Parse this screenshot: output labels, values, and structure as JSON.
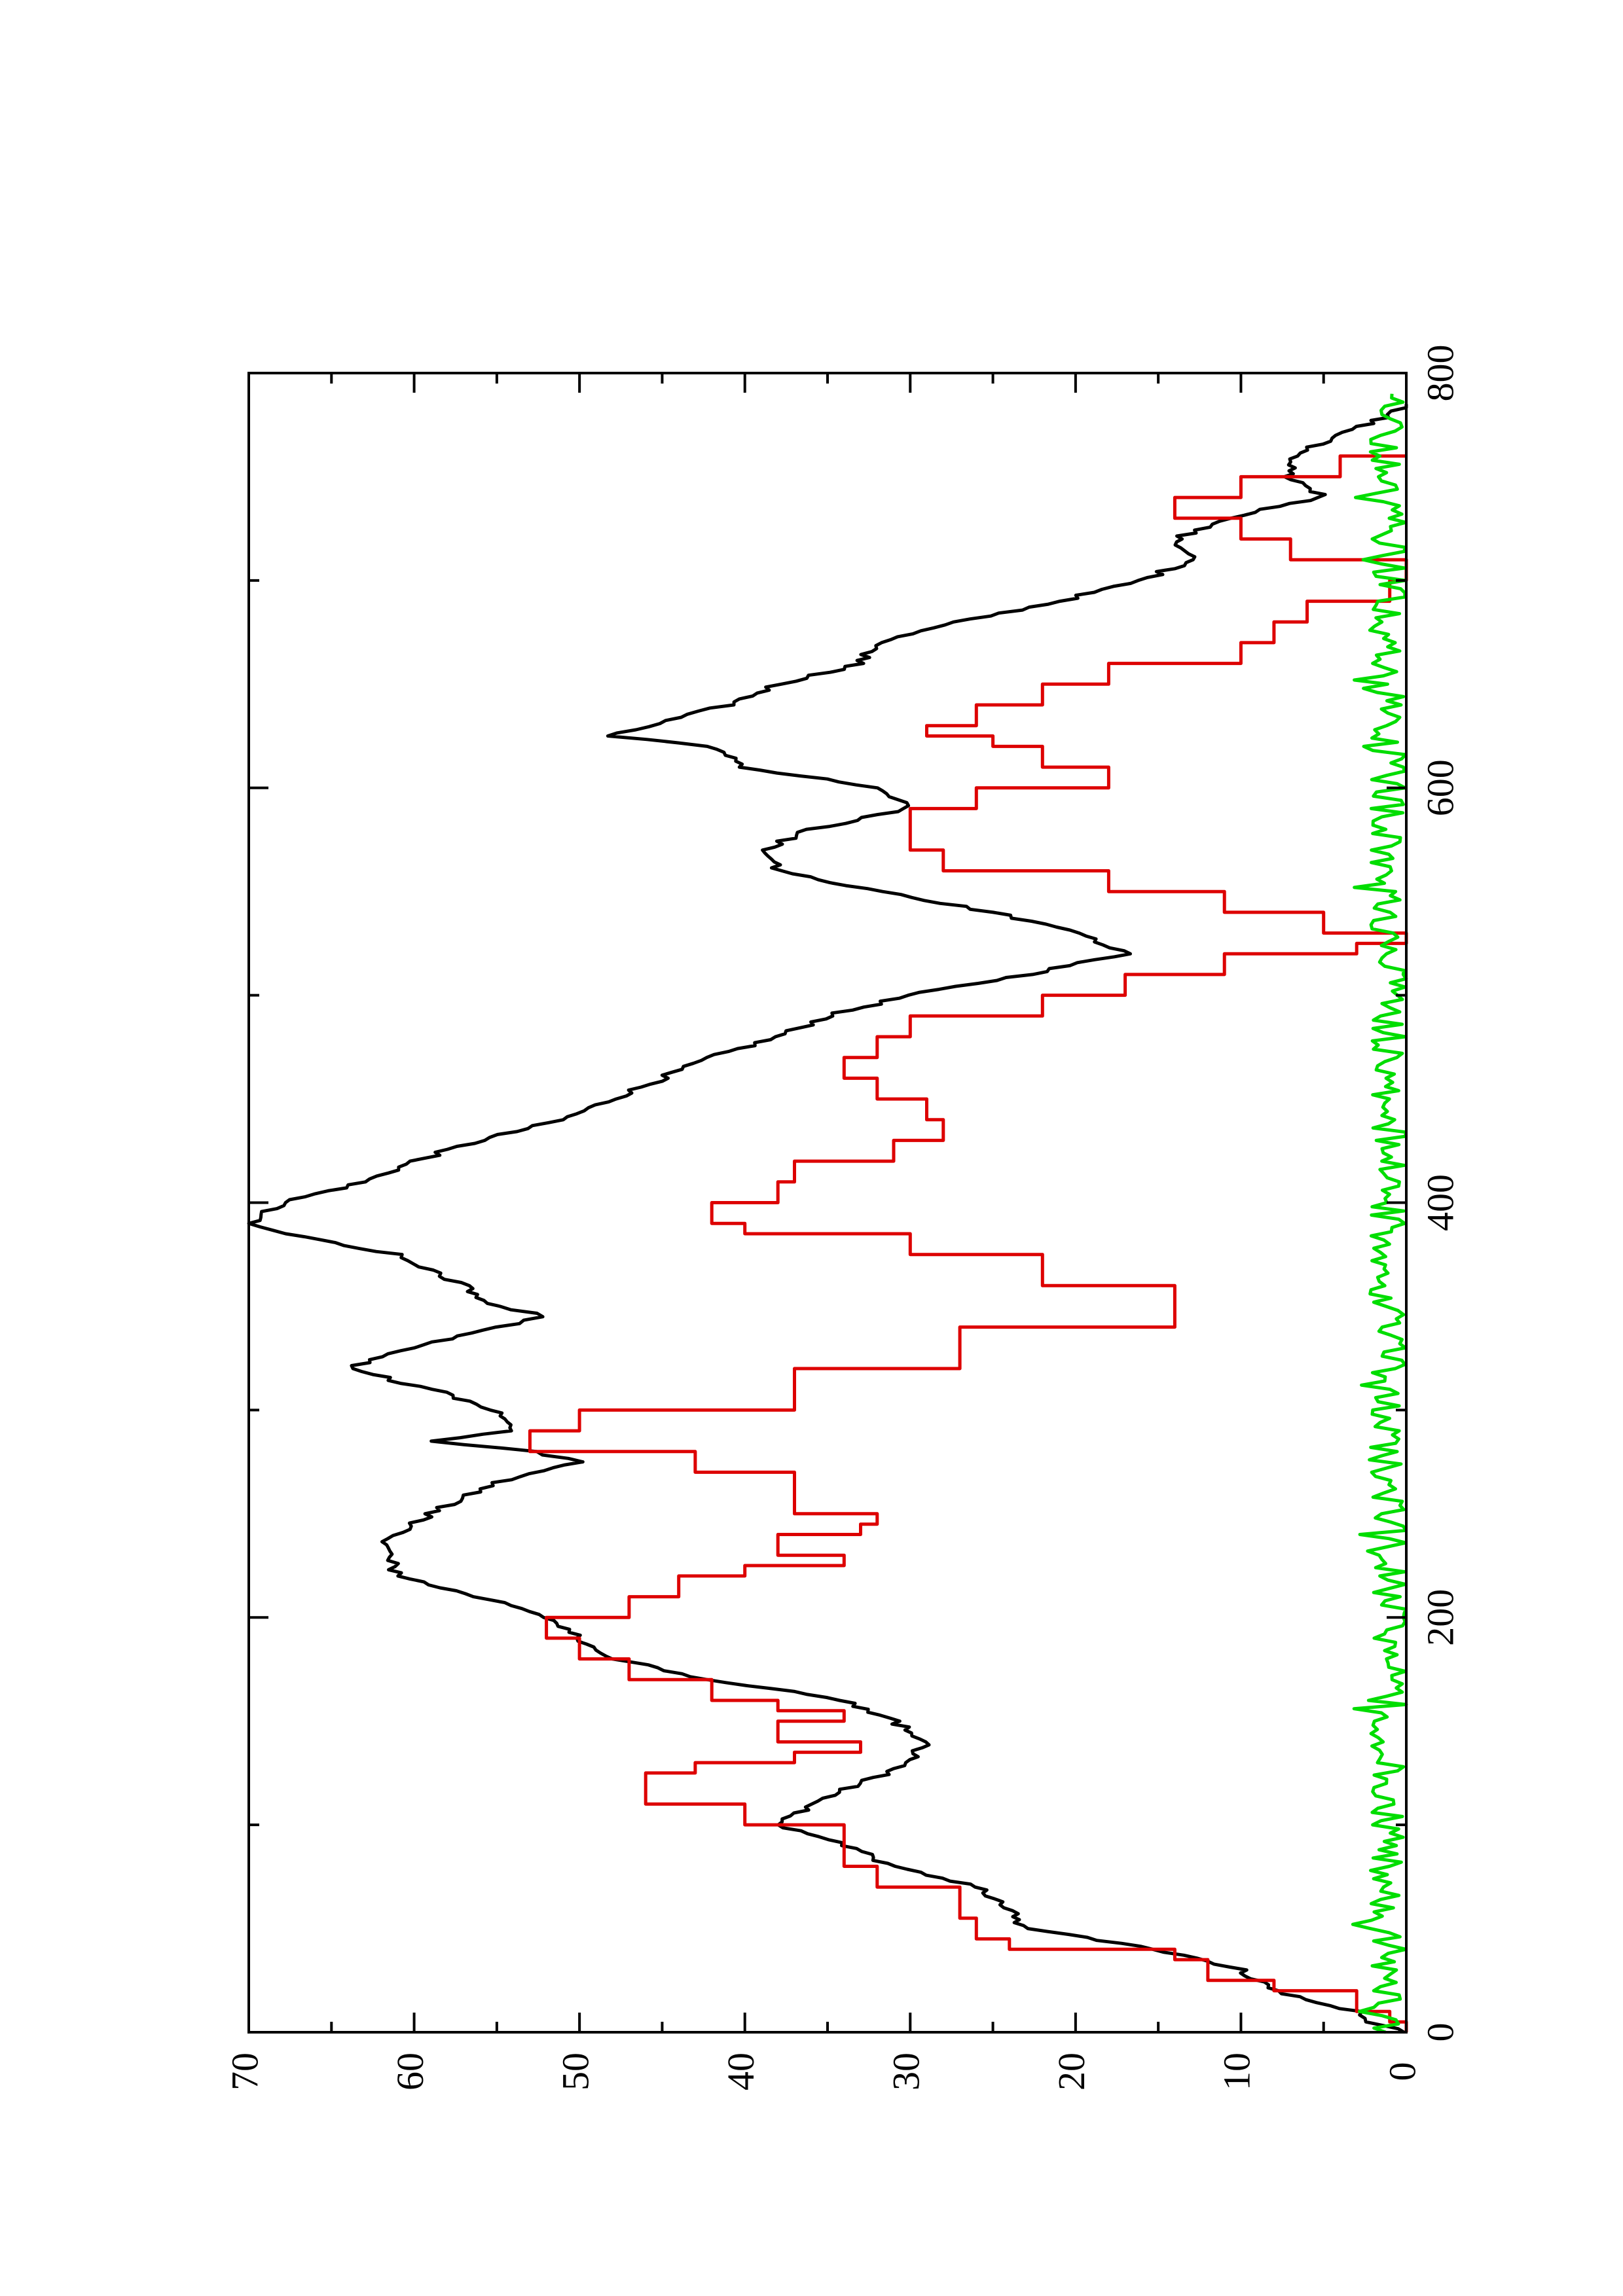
{
  "chart_data": {
    "type": "line",
    "orientation": "rotated 90 degrees counter-clockwise (page landscape)",
    "title": "",
    "xlabel": "",
    "ylabel": "",
    "xlim": [
      0,
      800
    ],
    "ylim": [
      0,
      70
    ],
    "x_ticks": [
      "0",
      "200",
      "400",
      "600",
      "800"
    ],
    "y_ticks": [
      "0",
      "10",
      "20",
      "30",
      "40",
      "50",
      "60",
      "70"
    ],
    "grid": false,
    "legend": "none",
    "series": [
      {
        "color": "#000000",
        "style": "noisy line",
        "points": [
          [
            0,
            0
          ],
          [
            5,
            2
          ],
          [
            10,
            3
          ],
          [
            20,
            8
          ],
          [
            30,
            10
          ],
          [
            40,
            15
          ],
          [
            50,
            23
          ],
          [
            60,
            24
          ],
          [
            70,
            26
          ],
          [
            80,
            31
          ],
          [
            90,
            34
          ],
          [
            100,
            38
          ],
          [
            110,
            36
          ],
          [
            120,
            33
          ],
          [
            130,
            30
          ],
          [
            140,
            29
          ],
          [
            150,
            31
          ],
          [
            160,
            34
          ],
          [
            170,
            42
          ],
          [
            180,
            48
          ],
          [
            190,
            50
          ],
          [
            200,
            52
          ],
          [
            210,
            56
          ],
          [
            220,
            61
          ],
          [
            235,
            62
          ],
          [
            250,
            59
          ],
          [
            265,
            55
          ],
          [
            275,
            50
          ],
          [
            280,
            53
          ],
          [
            285,
            59
          ],
          [
            290,
            54
          ],
          [
            300,
            55
          ],
          [
            310,
            59
          ],
          [
            320,
            64
          ],
          [
            330,
            60
          ],
          [
            340,
            55
          ],
          [
            345,
            52
          ],
          [
            350,
            55
          ],
          [
            360,
            57
          ],
          [
            375,
            61
          ],
          [
            385,
            68
          ],
          [
            390,
            70
          ],
          [
            400,
            68
          ],
          [
            410,
            63
          ],
          [
            420,
            60
          ],
          [
            430,
            56
          ],
          [
            440,
            51
          ],
          [
            450,
            48
          ],
          [
            460,
            45
          ],
          [
            470,
            42
          ],
          [
            480,
            38
          ],
          [
            490,
            35
          ],
          [
            500,
            30
          ],
          [
            510,
            23
          ],
          [
            520,
            17
          ],
          [
            530,
            20
          ],
          [
            540,
            25
          ],
          [
            550,
            32
          ],
          [
            560,
            38
          ],
          [
            570,
            39
          ],
          [
            580,
            36
          ],
          [
            590,
            30
          ],
          [
            600,
            32
          ],
          [
            610,
            40
          ],
          [
            620,
            42
          ],
          [
            625,
            48
          ],
          [
            640,
            41
          ],
          [
            650,
            38
          ],
          [
            660,
            33
          ],
          [
            670,
            32
          ],
          [
            680,
            27
          ],
          [
            690,
            21
          ],
          [
            700,
            16
          ],
          [
            710,
            13
          ],
          [
            720,
            14
          ],
          [
            730,
            11
          ],
          [
            740,
            5
          ],
          [
            750,
            7
          ],
          [
            760,
            7
          ],
          [
            770,
            4
          ],
          [
            780,
            1
          ],
          [
            785,
            0
          ]
        ]
      },
      {
        "color": "#dd0000",
        "style": "staircase",
        "points": [
          [
            0,
            0
          ],
          [
            5,
            1
          ],
          [
            10,
            3
          ],
          [
            20,
            8
          ],
          [
            25,
            12
          ],
          [
            35,
            14
          ],
          [
            40,
            24
          ],
          [
            45,
            26
          ],
          [
            55,
            27
          ],
          [
            65,
            27
          ],
          [
            70,
            32
          ],
          [
            80,
            34
          ],
          [
            90,
            34
          ],
          [
            100,
            40
          ],
          [
            110,
            46
          ],
          [
            120,
            46
          ],
          [
            125,
            43
          ],
          [
            130,
            37
          ],
          [
            135,
            33
          ],
          [
            140,
            38
          ],
          [
            150,
            34
          ],
          [
            155,
            38
          ],
          [
            160,
            42
          ],
          [
            170,
            47
          ],
          [
            180,
            50
          ],
          [
            190,
            52
          ],
          [
            200,
            47
          ],
          [
            210,
            44
          ],
          [
            220,
            40
          ],
          [
            225,
            34
          ],
          [
            230,
            38
          ],
          [
            240,
            33
          ],
          [
            245,
            32
          ],
          [
            250,
            37
          ],
          [
            260,
            37
          ],
          [
            270,
            43
          ],
          [
            280,
            53
          ],
          [
            285,
            53
          ],
          [
            290,
            50
          ],
          [
            300,
            37
          ],
          [
            320,
            27
          ],
          [
            340,
            14
          ],
          [
            350,
            14
          ],
          [
            360,
            22
          ],
          [
            375,
            30
          ],
          [
            385,
            40
          ],
          [
            390,
            42
          ],
          [
            400,
            38
          ],
          [
            410,
            37
          ],
          [
            420,
            31
          ],
          [
            430,
            28
          ],
          [
            440,
            29
          ],
          [
            450,
            32
          ],
          [
            460,
            34
          ],
          [
            470,
            32
          ],
          [
            480,
            30
          ],
          [
            490,
            22
          ],
          [
            500,
            17
          ],
          [
            510,
            11
          ],
          [
            520,
            3
          ],
          [
            525,
            0
          ],
          [
            530,
            5
          ],
          [
            540,
            11
          ],
          [
            550,
            18
          ],
          [
            560,
            28
          ],
          [
            570,
            30
          ],
          [
            580,
            30
          ],
          [
            590,
            26
          ],
          [
            600,
            18
          ],
          [
            610,
            22
          ],
          [
            620,
            25
          ],
          [
            625,
            29
          ],
          [
            630,
            26
          ],
          [
            640,
            22
          ],
          [
            650,
            18
          ],
          [
            660,
            10
          ],
          [
            670,
            8
          ],
          [
            680,
            6
          ],
          [
            690,
            1
          ],
          [
            700,
            0
          ],
          [
            710,
            7
          ],
          [
            720,
            10
          ],
          [
            730,
            14
          ],
          [
            735,
            14
          ],
          [
            740,
            10
          ],
          [
            750,
            4
          ],
          [
            760,
            0
          ]
        ]
      },
      {
        "color": "#00dd00",
        "style": "noise near zero",
        "points": [
          [
            0,
            0
          ],
          [
            20,
            1
          ],
          [
            40,
            2
          ],
          [
            60,
            1
          ],
          [
            80,
            2
          ],
          [
            100,
            2
          ],
          [
            120,
            1
          ],
          [
            140,
            2
          ],
          [
            160,
            1
          ],
          [
            180,
            1
          ],
          [
            200,
            1
          ],
          [
            220,
            1
          ],
          [
            240,
            1
          ],
          [
            260,
            1
          ],
          [
            280,
            1
          ],
          [
            300,
            1
          ],
          [
            320,
            1
          ],
          [
            340,
            1
          ],
          [
            360,
            1
          ],
          [
            380,
            1
          ],
          [
            400,
            1
          ],
          [
            420,
            1
          ],
          [
            440,
            1
          ],
          [
            460,
            1
          ],
          [
            480,
            1
          ],
          [
            500,
            1
          ],
          [
            520,
            2
          ],
          [
            540,
            1
          ],
          [
            560,
            1
          ],
          [
            580,
            1
          ],
          [
            600,
            1
          ],
          [
            620,
            1
          ],
          [
            640,
            1
          ],
          [
            660,
            1
          ],
          [
            680,
            1
          ],
          [
            700,
            1
          ],
          [
            720,
            1
          ],
          [
            740,
            1
          ],
          [
            760,
            1
          ],
          [
            780,
            1
          ],
          [
            790,
            1
          ]
        ]
      }
    ]
  }
}
